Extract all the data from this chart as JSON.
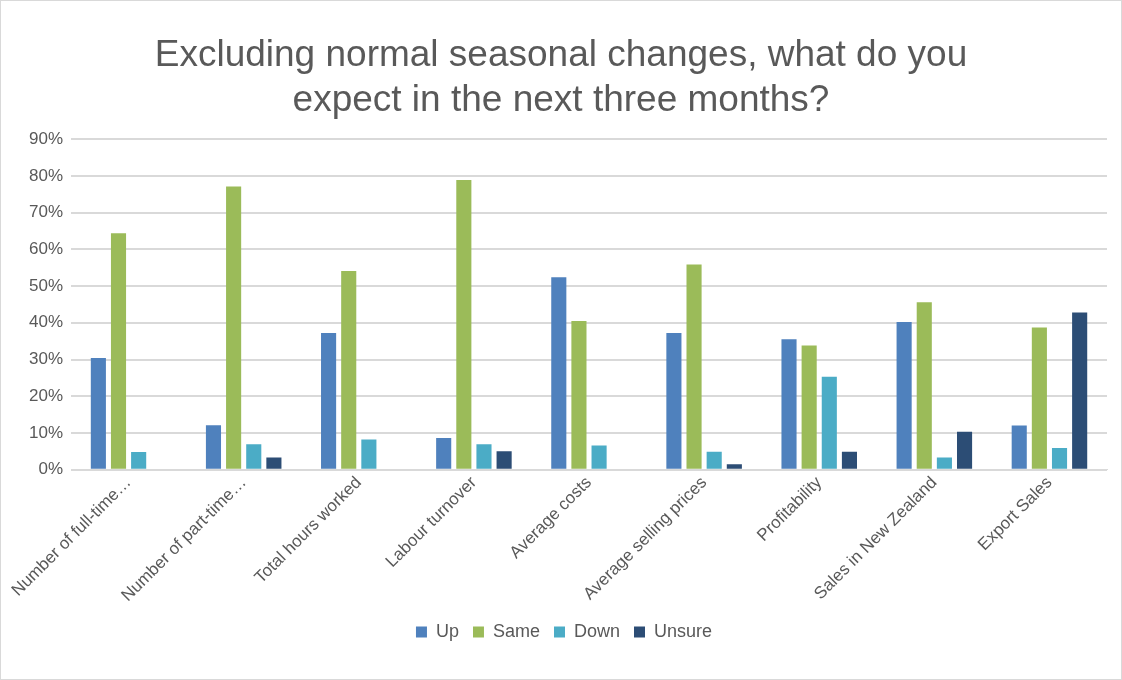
{
  "chart_data": {
    "type": "bar",
    "title": "Excluding normal seasonal changes, what do you expect in the next three months?",
    "categories": [
      "Number of full-time…",
      "Number of part-time…",
      "Total hours worked",
      "Labour turnover",
      "Average costs",
      "Average selling prices",
      "Profitability",
      "Sales in New Zealand",
      "Export Sales"
    ],
    "series": [
      {
        "name": "Up",
        "color": "#4f81bd",
        "values": [
          30.4,
          12.1,
          37.2,
          8.6,
          52.4,
          37.2,
          35.5,
          40.2,
          12.0
        ]
      },
      {
        "name": "Same",
        "color": "#9bbb59",
        "values": [
          64.4,
          77.1,
          54.1,
          78.9,
          40.5,
          55.9,
          33.8,
          45.6,
          38.7
        ]
      },
      {
        "name": "Down",
        "color": "#4bacc6",
        "values": [
          4.8,
          6.9,
          8.2,
          6.9,
          6.6,
          4.9,
          25.3,
          3.3,
          5.9
        ]
      },
      {
        "name": "Unsure",
        "color": "#2c4d75",
        "values": [
          null,
          3.3,
          null,
          5.0,
          null,
          1.5,
          4.9,
          10.3,
          42.8
        ]
      }
    ],
    "ylim": [
      0,
      90
    ],
    "yticks": [
      {
        "value": 0,
        "label": "0%"
      },
      {
        "value": 10,
        "label": "10%"
      },
      {
        "value": 20,
        "label": "20%"
      },
      {
        "value": 30,
        "label": "30%"
      },
      {
        "value": 40,
        "label": "40%"
      },
      {
        "value": 50,
        "label": "50%"
      },
      {
        "value": 60,
        "label": "60%"
      },
      {
        "value": 70,
        "label": "70%"
      },
      {
        "value": 80,
        "label": "80%"
      },
      {
        "value": 90,
        "label": "90%"
      }
    ],
    "grid": "y",
    "legend": "bottom"
  }
}
